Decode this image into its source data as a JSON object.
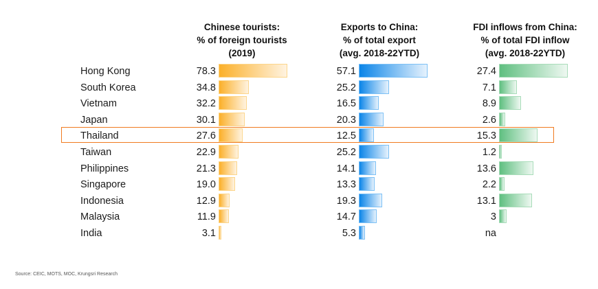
{
  "chart_data": {
    "type": "bar",
    "orientation": "horizontal",
    "categories": [
      "Hong Kong",
      "South Korea",
      "Vietnam",
      "Japan",
      "Thailand",
      "Taiwan",
      "Philippines",
      "Singapore",
      "Indonesia",
      "Malaysia",
      "India"
    ],
    "highlighted_category": "Thailand",
    "series": [
      {
        "name": "tourists",
        "title": [
          "Chinese tourists:",
          "% of foreign tourists",
          "(2019)"
        ],
        "values": [
          78.3,
          34.8,
          32.2,
          30.1,
          27.6,
          22.9,
          21.3,
          19.0,
          12.9,
          11.9,
          3.1
        ],
        "labels": [
          "78.3",
          "34.8",
          "32.2",
          "30.1",
          "27.6",
          "22.9",
          "21.3",
          "19.0",
          "12.9",
          "11.9",
          "3.1"
        ],
        "color": "#fbb02a"
      },
      {
        "name": "exports",
        "title": [
          "Exports to China:",
          "% of total export",
          "(avg. 2018-22YTD)"
        ],
        "values": [
          57.1,
          25.2,
          16.5,
          20.3,
          12.5,
          25.2,
          14.1,
          13.3,
          19.3,
          14.7,
          5.3
        ],
        "labels": [
          "57.1",
          "25.2",
          "16.5",
          "20.3",
          "12.5",
          "25.2",
          "14.1",
          "13.3",
          "19.3",
          "14.7",
          "5.3"
        ],
        "color": "#0b85e8"
      },
      {
        "name": "fdi",
        "title": [
          "FDI inflows from China:",
          "% of total FDI inflow",
          "(avg. 2018-22YTD)"
        ],
        "values": [
          27.4,
          7.1,
          8.9,
          2.6,
          15.3,
          1.2,
          13.6,
          2.2,
          13.1,
          3,
          null
        ],
        "labels": [
          "27.4",
          "7.1",
          "8.9",
          "2.6",
          "15.3",
          "1.2",
          "13.6",
          "2.2",
          "13.1",
          "3",
          "na"
        ],
        "color": "#5fbf80"
      }
    ],
    "highlight_color": "#f07a1e",
    "grid": false,
    "legend": "none"
  },
  "source": "Source: CEIC, MOTS, MOC, Krungsri Research"
}
